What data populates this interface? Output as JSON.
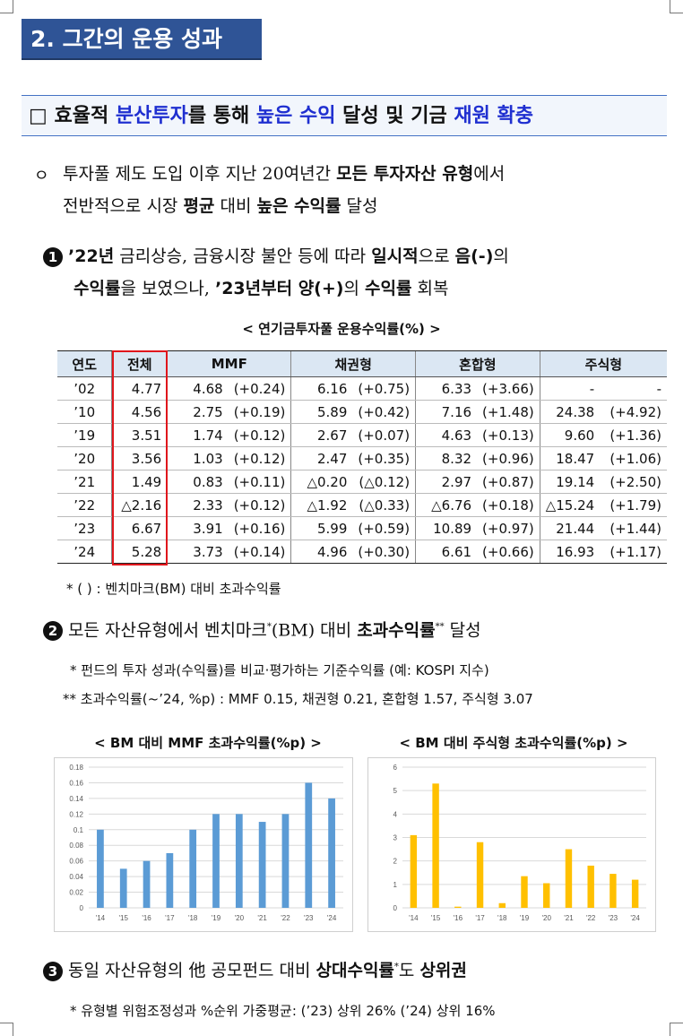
{
  "section_title": "2. 그간의 운용 성과",
  "headline": {
    "box": "□",
    "p1": "효율적 ",
    "p2": "분산투자",
    "p3": "를 통해 ",
    "p4": "높은 수익",
    "p5": " 달성 및 기금 ",
    "p6": "재원 확충"
  },
  "bullet_main": {
    "marker": "ㅇ",
    "l1a": "투자풀 제도 도입 이후 지난 20여년간 ",
    "l1b": "모든 투자자산 유형",
    "l1c": "에서",
    "l2a": "전반적으로 시장 ",
    "l2b": "평균",
    "l2c": " 대비 ",
    "l2d": "높은 수익률",
    "l2e": " 달성"
  },
  "item1": {
    "num": "1",
    "l1a": "’22년",
    "l1b": " 금리상승, 금융시장 불안 등에 따라 ",
    "l1c": "일시적",
    "l1d": "으로 ",
    "l1e": "음(-)",
    "l1f": "의",
    "l2a": "수익률",
    "l2b": "을 보였으나, ",
    "l2c": "’23년부터 양(+)",
    "l2d": "의 ",
    "l2e": "수익률",
    "l2f": " 회복"
  },
  "table": {
    "caption": "< 연기금투자풀 운용수익률(%) >",
    "headers": [
      "연도",
      "전체",
      "MMF",
      "채권형",
      "혼합형",
      "주식형"
    ],
    "rows": [
      [
        "’02",
        "4.77",
        "4.68",
        "(+0.24)",
        "6.16",
        "(+0.75)",
        "6.33",
        "(+3.66)",
        "-",
        "-"
      ],
      [
        "’10",
        "4.56",
        "2.75",
        "(+0.19)",
        "5.89",
        "(+0.42)",
        "7.16",
        "(+1.48)",
        "24.38",
        "(+4.92)"
      ],
      [
        "’19",
        "3.51",
        "1.74",
        "(+0.12)",
        "2.67",
        "(+0.07)",
        "4.63",
        "(+0.13)",
        "9.60",
        "(+1.36)"
      ],
      [
        "’20",
        "3.56",
        "1.03",
        "(+0.12)",
        "2.47",
        "(+0.35)",
        "8.32",
        "(+0.96)",
        "18.47",
        "(+1.06)"
      ],
      [
        "’21",
        "1.49",
        "0.83",
        "(+0.11)",
        "△0.20",
        "(△0.12)",
        "2.97",
        "(+0.87)",
        "19.14",
        "(+2.50)"
      ],
      [
        "’22",
        "△2.16",
        "2.33",
        "(+0.12)",
        "△1.92",
        "(△0.33)",
        "△6.76",
        "(+0.18)",
        "△15.24",
        "(+1.79)"
      ],
      [
        "’23",
        "6.67",
        "3.91",
        "(+0.16)",
        "5.99",
        "(+0.59)",
        "10.89",
        "(+0.97)",
        "21.44",
        "(+1.44)"
      ],
      [
        "’24",
        "5.28",
        "3.73",
        "(+0.14)",
        "4.96",
        "(+0.30)",
        "6.61",
        "(+0.66)",
        "16.93",
        "(+1.17)"
      ]
    ],
    "footnote": "* (    ) : 벤치마크(BM) 대비 초과수익률"
  },
  "item2": {
    "num": "2",
    "t1": "모든 자산유형에서 벤치마크",
    "sup1": "*",
    "t2": "(BM) 대비 ",
    "t3": "초과수익률",
    "sup2": "**",
    "t4": " 달성",
    "note1": "* 펀드의 투자 성과(수익률)를 비교·평가하는 기준수익률 (예: KOSPI 지수)",
    "note2": "** 초과수익률(~’24, %p) : MMF 0.15, 채권형 0.21, 혼합형 1.57, 주식형 3.07"
  },
  "item3": {
    "num": "3",
    "t1": "동일 자산유형의 他 공모펀드 대비 ",
    "t2": "상대수익률",
    "sup": "*",
    "t3": "도 ",
    "t4": "상위권",
    "note": "* 유형별 위험조정성과 %순위 가중평균: (’23) 상위 26% (’24) 상위 16%"
  },
  "colors": {
    "mmf_bar": "#5b9bd5",
    "stock_bar": "#ffc000",
    "accent": "#2f5496",
    "highlight_box": "#e0161c"
  },
  "chart_data": [
    {
      "type": "bar",
      "title": "< BM 대비 MMF 초과수익률(%p) >",
      "categories": [
        "'14",
        "'15",
        "'16",
        "'17",
        "'18",
        "'19",
        "'20",
        "'21",
        "'22",
        "'23",
        "'24"
      ],
      "values": [
        0.1,
        0.05,
        0.06,
        0.07,
        0.1,
        0.12,
        0.12,
        0.11,
        0.12,
        0.16,
        0.14
      ],
      "ylim": [
        0,
        0.18
      ],
      "yticks": [
        "0",
        "0.02",
        "0.04",
        "0.06",
        "0.08",
        "0.1",
        "0.12",
        "0.14",
        "0.16",
        "0.18"
      ],
      "grid": true
    },
    {
      "type": "bar",
      "title": "< BM 대비 주식형 초과수익률(%p) >",
      "categories": [
        "'14",
        "'15",
        "'16",
        "'17",
        "'18",
        "'19",
        "'20",
        "'21",
        "'22",
        "'23",
        "'24"
      ],
      "values": [
        3.1,
        5.3,
        0.05,
        2.8,
        0.2,
        1.35,
        1.05,
        2.5,
        1.8,
        1.45,
        1.2
      ],
      "ylim": [
        0,
        6
      ],
      "yticks": [
        "0",
        "1",
        "2",
        "3",
        "4",
        "5",
        "6"
      ],
      "grid": true
    }
  ]
}
